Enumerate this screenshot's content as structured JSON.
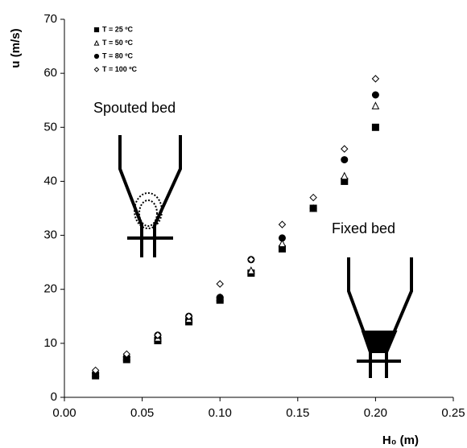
{
  "chart_data": {
    "type": "scatter",
    "xlabel": "H₀ (m)",
    "ylabel": "u (m/s)",
    "annotations": [
      "Spouted bed",
      "Fixed bed"
    ],
    "x": [
      0.02,
      0.04,
      0.06,
      0.08,
      0.1,
      0.12,
      0.14,
      0.16,
      0.18,
      0.2
    ],
    "series": [
      {
        "name": "T = 25 ºC",
        "color": "#000000",
        "marker": "square",
        "filled": true,
        "values": [
          4,
          7,
          10.5,
          14,
          18,
          23,
          27.5,
          35,
          40,
          50
        ]
      },
      {
        "name": "T = 50 ºC",
        "color": "#000000",
        "marker": "triangle",
        "filled": false,
        "values": [
          4.5,
          7.5,
          11,
          14.5,
          18.5,
          23.5,
          28.5,
          35,
          41,
          54
        ]
      },
      {
        "name": "T = 80 ºC",
        "color": "#000000",
        "marker": "circle",
        "filled": true,
        "values": [
          4.5,
          7.5,
          11.5,
          15,
          18.5,
          25.5,
          29.5,
          35,
          44,
          56
        ]
      },
      {
        "name": "T = 100 ºC",
        "color": "#000000",
        "marker": "diamond",
        "filled": false,
        "values": [
          5,
          8,
          11.5,
          15,
          21,
          25.5,
          32,
          37,
          46,
          59
        ]
      }
    ],
    "xlim": [
      0,
      0.25
    ],
    "xticks": [
      {
        "value": 0,
        "label": "0.00"
      },
      0.05,
      {
        "value": 0.1,
        "label": "0.10"
      },
      0.15,
      {
        "value": 0.2,
        "label": "0.20"
      },
      0.25
    ],
    "ylim": [
      0,
      70
    ],
    "yticks": [
      0,
      10,
      20,
      30,
      40,
      50,
      60,
      70
    ],
    "grid": false,
    "legend": "upper left"
  }
}
